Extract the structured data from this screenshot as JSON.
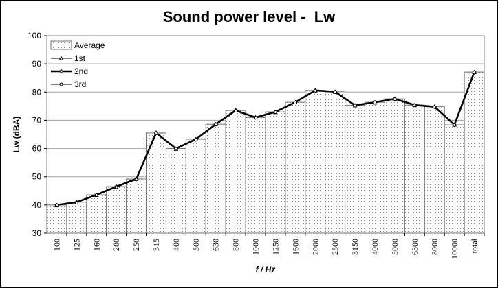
{
  "chart_data": {
    "type": "bar",
    "title": "Sound power level -  Lw",
    "xlabel": "f / Hz",
    "ylabel": "Lw (dBA)",
    "ylim": [
      30,
      100
    ],
    "yticks": [
      30,
      40,
      50,
      60,
      70,
      80,
      90,
      100
    ],
    "grid": true,
    "legend_position": "top-left",
    "categories": [
      "100",
      "125",
      "160",
      "200",
      "250",
      "315",
      "400",
      "500",
      "630",
      "800",
      "1000",
      "1250",
      "1600",
      "2000",
      "2500",
      "3150",
      "4000",
      "5000",
      "6300",
      "8000",
      "10000",
      "total"
    ],
    "series": [
      {
        "name": "Average",
        "kind": "bar",
        "values": [
          40.0,
          41.0,
          43.6,
          46.5,
          49.2,
          65.5,
          60.0,
          63.3,
          68.6,
          73.5,
          71.0,
          73.0,
          76.4,
          80.6,
          80.1,
          75.3,
          76.4,
          77.6,
          75.4,
          74.8,
          68.4,
          87.1
        ]
      },
      {
        "name": "1st",
        "kind": "line",
        "values": [
          39.8,
          40.9,
          43.5,
          46.4,
          49.1,
          65.6,
          59.8,
          63.2,
          68.6,
          73.6,
          71.0,
          72.8,
          76.3,
          80.5,
          80.0,
          75.2,
          76.2,
          77.6,
          75.3,
          74.8,
          68.4,
          87.0
        ]
      },
      {
        "name": "2nd",
        "kind": "line",
        "values": [
          40.0,
          41.0,
          43.6,
          46.5,
          49.2,
          65.5,
          60.0,
          63.3,
          68.6,
          73.5,
          71.0,
          73.0,
          76.4,
          80.6,
          80.1,
          75.3,
          76.4,
          77.6,
          75.4,
          74.8,
          68.4,
          87.1
        ]
      },
      {
        "name": "3rd",
        "kind": "line",
        "values": [
          39.9,
          40.8,
          43.5,
          46.3,
          49.0,
          65.4,
          59.9,
          63.1,
          68.5,
          73.4,
          70.9,
          72.9,
          76.3,
          80.5,
          80.0,
          75.2,
          76.3,
          77.5,
          75.3,
          74.7,
          68.3,
          87.0
        ]
      }
    ]
  }
}
